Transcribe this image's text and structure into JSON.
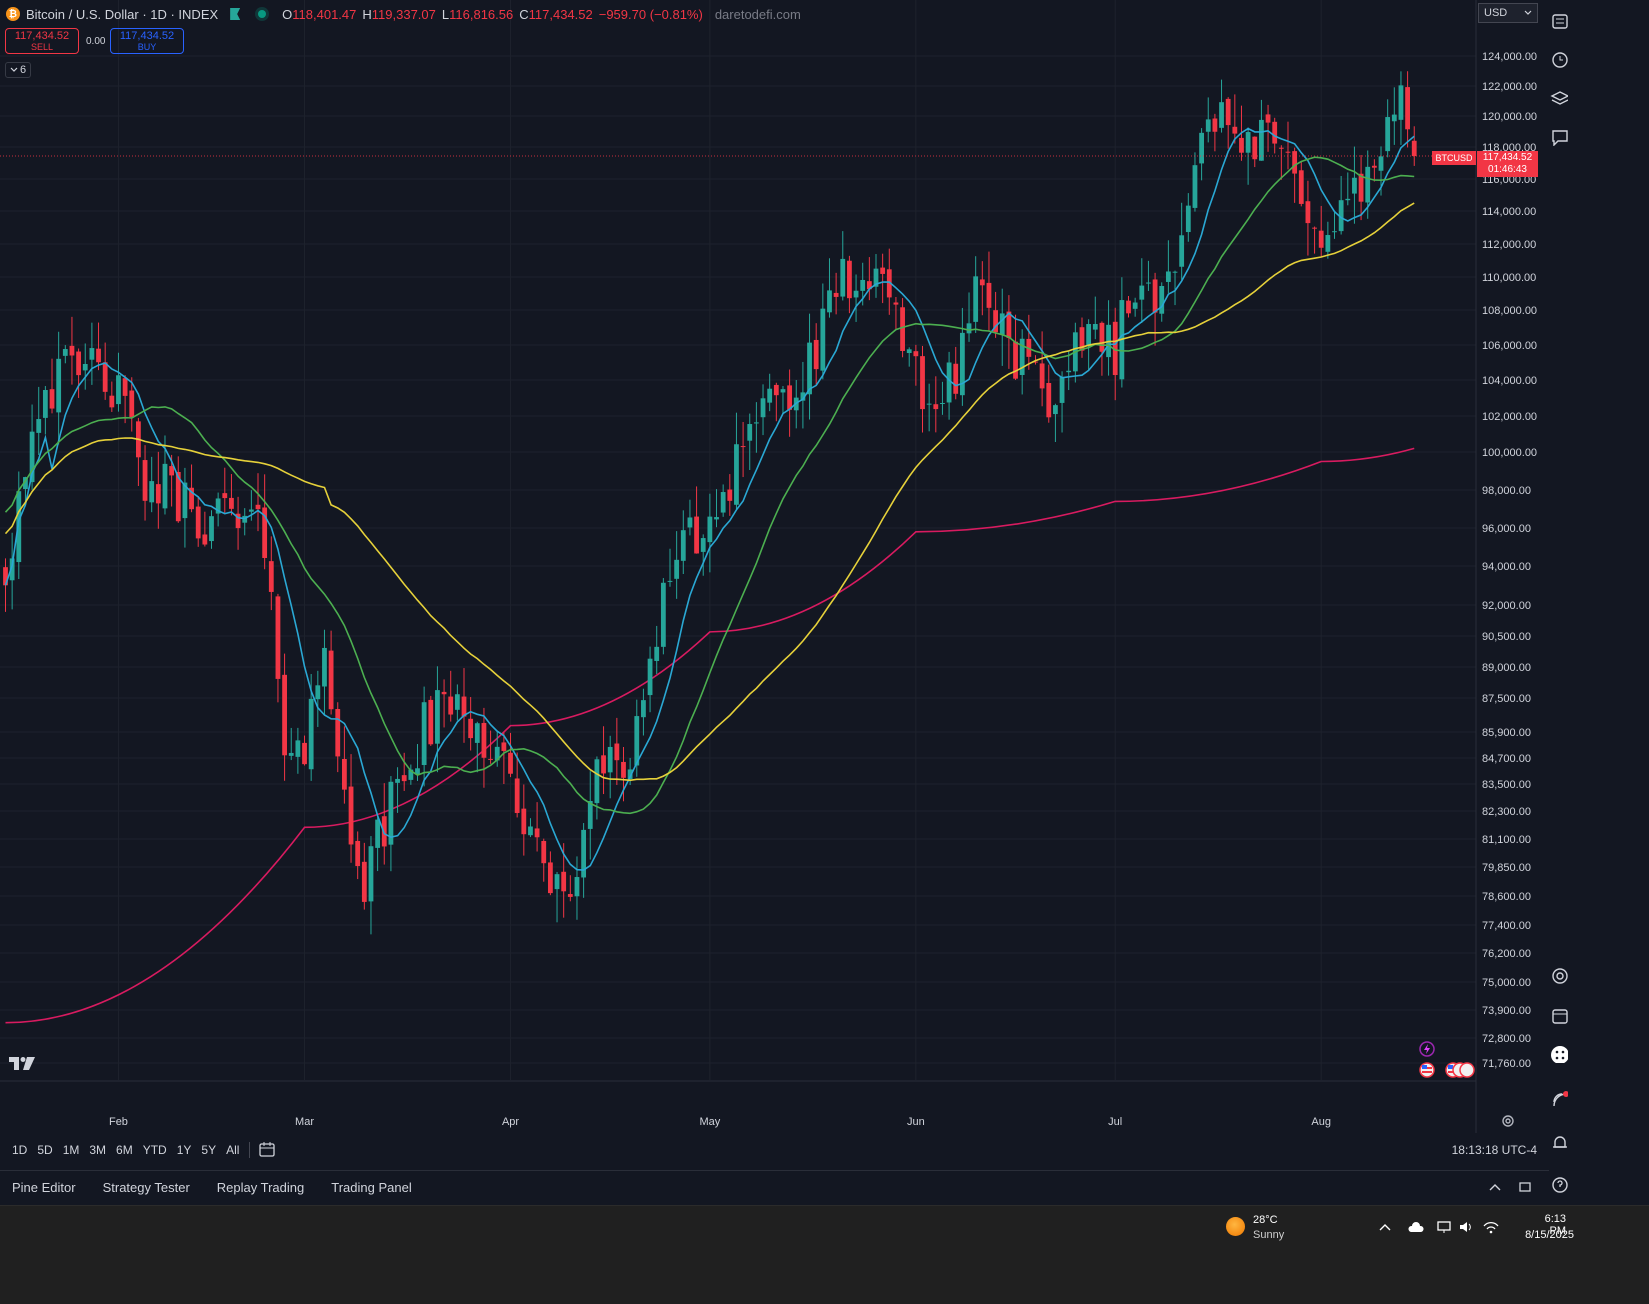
{
  "legend": {
    "coin_glyph": "₿",
    "symbol_title": "Bitcoin / U.S. Dollar · 1D · INDEX",
    "ohlc": [
      {
        "k": "O",
        "v": "118,401.47"
      },
      {
        "k": "H",
        "v": "119,337.07"
      },
      {
        "k": "L",
        "v": "116,816.56"
      },
      {
        "k": "C",
        "v": "117,434.52"
      }
    ],
    "change": "−959.70 (−0.81%)",
    "watermark": "daretodefi.com"
  },
  "trade": {
    "sell_price": "117,434.52",
    "sell_label": "SELL",
    "spread": "0.00",
    "buy_price": "117,434.52",
    "buy_label": "BUY"
  },
  "indicators_toggle": "6",
  "currency": "USD",
  "last_price": {
    "symbol_tag": "BTCUSD",
    "price": "117,434.52",
    "countdown": "01:46:43"
  },
  "colors": {
    "up": "#26a69a",
    "down": "#f23645",
    "ma_fast": "#2aa8d4",
    "ma_mid": "#4caf50",
    "ma_slow": "#e6d13a",
    "ma_long": "#d81b60"
  },
  "chart_data": {
    "type": "candlestick",
    "interval": "1D",
    "y_axis_labels": [
      "124,000.00",
      "122,000.00",
      "120,000.00",
      "118,000.00",
      "116,000.00",
      "114,000.00",
      "112,000.00",
      "110,000.00",
      "108,000.00",
      "106,000.00",
      "104,000.00",
      "102,000.00",
      "100,000.00",
      "98,000.00",
      "96,000.00",
      "94,000.00",
      "92,000.00",
      "90,500.00",
      "89,000.00",
      "87,500.00",
      "85,900.00",
      "84,700.00",
      "83,500.00",
      "82,300.00",
      "81,100.00",
      "79,850.00",
      "78,600.00",
      "77,400.00",
      "76,200.00",
      "75,000.00",
      "73,900.00",
      "72,800.00",
      "71,760.00"
    ],
    "x_axis_labels": [
      "Feb",
      "Mar",
      "Apr",
      "May",
      "Jun",
      "Jul",
      "Aug"
    ],
    "x_axis_dates": [
      "2025-02-01",
      "2025-03-01",
      "2025-04-01",
      "2025-05-01",
      "2025-06-01",
      "2025-07-01",
      "2025-08-01"
    ],
    "ylim": [
      71000,
      125000
    ],
    "anchors": [
      [
        "2025-01-15",
        93800
      ],
      [
        "2025-01-20",
        103500
      ],
      [
        "2025-01-30",
        104800
      ],
      [
        "2025-02-05",
        98500
      ],
      [
        "2025-02-15",
        96500
      ],
      [
        "2025-02-22",
        96300
      ],
      [
        "2025-02-26",
        86000
      ],
      [
        "2025-03-01",
        85500
      ],
      [
        "2025-03-04",
        89000
      ],
      [
        "2025-03-10",
        78800
      ],
      [
        "2025-03-15",
        83500
      ],
      [
        "2025-03-20",
        86500
      ],
      [
        "2025-03-25",
        87200
      ],
      [
        "2025-04-01",
        84000
      ],
      [
        "2025-04-07",
        78200
      ],
      [
        "2025-04-10",
        79500
      ],
      [
        "2025-04-15",
        84200
      ],
      [
        "2025-04-21",
        86000
      ],
      [
        "2025-04-24",
        93500
      ],
      [
        "2025-05-01",
        96500
      ],
      [
        "2025-05-08",
        102500
      ],
      [
        "2025-05-15",
        103600
      ],
      [
        "2025-05-22",
        110500
      ],
      [
        "2025-05-28",
        108000
      ],
      [
        "2025-06-01",
        104700
      ],
      [
        "2025-06-05",
        101800
      ],
      [
        "2025-06-10",
        109500
      ],
      [
        "2025-06-18",
        104500
      ],
      [
        "2025-06-22",
        100900
      ],
      [
        "2025-06-26",
        107300
      ],
      [
        "2025-07-01",
        106000
      ],
      [
        "2025-07-04",
        109000
      ],
      [
        "2025-07-09",
        110000
      ],
      [
        "2025-07-14",
        119800
      ],
      [
        "2025-07-20",
        118200
      ],
      [
        "2025-07-25",
        118000
      ],
      [
        "2025-08-01",
        113300
      ],
      [
        "2025-08-03",
        113000
      ],
      [
        "2025-08-08",
        116000
      ],
      [
        "2025-08-13",
        121000
      ],
      [
        "2025-08-14",
        118400
      ],
      [
        "2025-08-15",
        117434.52
      ]
    ],
    "last_date": "2025-08-15",
    "moving_averages": [
      {
        "period": 8,
        "color": "#2aa8d4"
      },
      {
        "period": 21,
        "color": "#4caf50"
      },
      {
        "period": 50,
        "color": "#e6d13a"
      },
      {
        "period": 200,
        "color": "#d81b60"
      }
    ],
    "ma200_points": [
      [
        "2025-01-15",
        73400
      ],
      [
        "2025-03-01",
        81600
      ],
      [
        "2025-04-01",
        86200
      ],
      [
        "2025-05-01",
        90700
      ],
      [
        "2025-06-01",
        95800
      ],
      [
        "2025-07-01",
        97400
      ],
      [
        "2025-08-01",
        99500
      ],
      [
        "2025-08-15",
        100200
      ]
    ],
    "last_price_line": 117434.52
  },
  "range_buttons": [
    "1D",
    "5D",
    "1M",
    "3M",
    "6M",
    "YTD",
    "1Y",
    "5Y",
    "All"
  ],
  "clock": "18:13:18 UTC-4",
  "panel_tabs": [
    "Pine Editor",
    "Strategy Tester",
    "Replay Trading",
    "Trading Panel"
  ],
  "taskbar": {
    "weather_temp": "28°C",
    "weather_condition": "Sunny",
    "time": "6:13 PM",
    "date": "8/15/2025"
  }
}
